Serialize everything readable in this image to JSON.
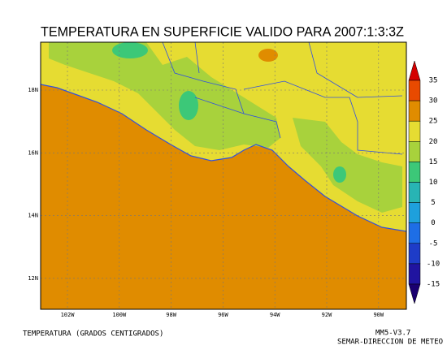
{
  "title": "TEMPERATURA EN SUPERFICIE VALIDO PARA 2007:1:3:3Z",
  "map": {
    "lat_labels": [
      "18N",
      "16N",
      "14N",
      "12N"
    ],
    "lon_labels": [
      "102W",
      "100W",
      "98W",
      "96W",
      "94W",
      "92W",
      "90W"
    ]
  },
  "colorbar": {
    "ticks": [
      35,
      30,
      25,
      20,
      15,
      10,
      5,
      0,
      -5,
      -10,
      -15
    ],
    "colors": [
      "#d40000",
      "#e84a00",
      "#e08c00",
      "#e6dc32",
      "#a8d23c",
      "#3cc878",
      "#28b4b4",
      "#1ea0dc",
      "#1e6ee6",
      "#1e3cc8",
      "#2014a0",
      "#1a0070"
    ]
  },
  "footer": {
    "left": "TEMPERATURA (GRADOS CENTIGRADOS)",
    "model": "MM5-V3.7",
    "agency": "SEMAR-DIRECCION DE METEO"
  }
}
